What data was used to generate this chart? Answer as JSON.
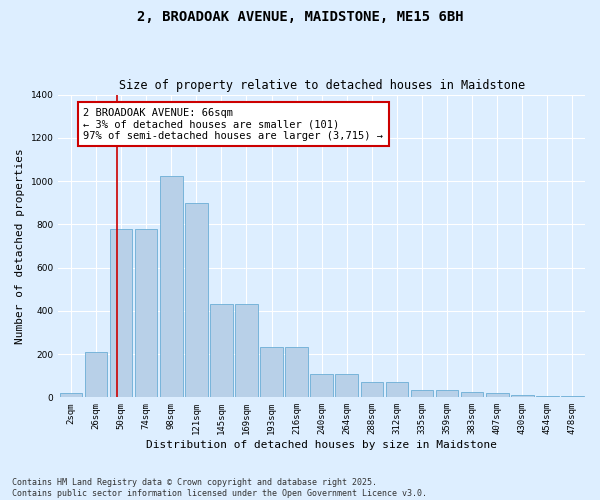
{
  "title": "2, BROADOAK AVENUE, MAIDSTONE, ME15 6BH",
  "subtitle": "Size of property relative to detached houses in Maidstone",
  "xlabel": "Distribution of detached houses by size in Maidstone",
  "ylabel": "Number of detached properties",
  "categories": [
    "2sqm",
    "26sqm",
    "50sqm",
    "74sqm",
    "98sqm",
    "121sqm",
    "145sqm",
    "169sqm",
    "193sqm",
    "216sqm",
    "240sqm",
    "264sqm",
    "288sqm",
    "312sqm",
    "335sqm",
    "359sqm",
    "383sqm",
    "407sqm",
    "430sqm",
    "454sqm",
    "478sqm"
  ],
  "values": [
    20,
    210,
    780,
    780,
    1025,
    900,
    430,
    430,
    235,
    235,
    110,
    110,
    70,
    70,
    35,
    35,
    25,
    20,
    12,
    5,
    5
  ],
  "bar_color": "#b8d0e8",
  "bar_edge_color": "#6baed6",
  "background_color": "#ddeeff",
  "grid_color": "#ffffff",
  "annotation_text": "2 BROADOAK AVENUE: 66sqm\n← 3% of detached houses are smaller (101)\n97% of semi-detached houses are larger (3,715) →",
  "annotation_box_color": "#ffffff",
  "annotation_box_edge": "#cc0000",
  "vline_color": "#cc0000",
  "vline_x_index": 1.85,
  "ylim": [
    0,
    1400
  ],
  "yticks": [
    0,
    200,
    400,
    600,
    800,
    1000,
    1200,
    1400
  ],
  "footnote": "Contains HM Land Registry data © Crown copyright and database right 2025.\nContains public sector information licensed under the Open Government Licence v3.0.",
  "title_fontsize": 10,
  "subtitle_fontsize": 8.5,
  "xlabel_fontsize": 8,
  "ylabel_fontsize": 8,
  "tick_fontsize": 6.5,
  "annotation_fontsize": 7.5,
  "footnote_fontsize": 6
}
